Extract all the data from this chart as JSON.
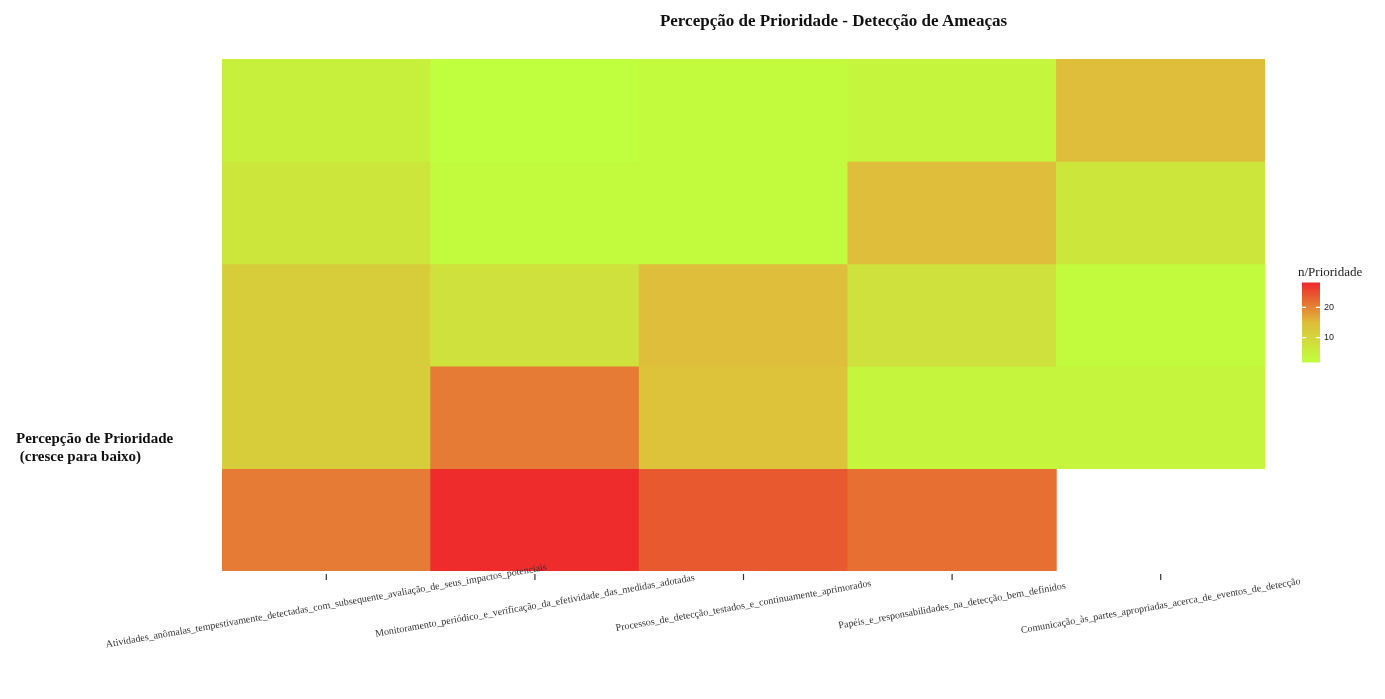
{
  "chart_data": {
    "type": "heatmap",
    "title": "Percepção de Prioridade - Detecção de Ameaças",
    "ylabel": "Percepção de Prioridade\n (cresce para baixo)",
    "clabel": "n/Prioridade",
    "categories": [
      "Atividades_anômalas_tempestivamente_detectadas_com_subsequente_avaliação_de_seus_impactos_potenciais",
      "Monitoramento_periódico_e_verificação_da_efetividade_das_medidas_adotadas",
      "Processos_de_detecção_testados_e_continuamente_aprimorados",
      "Papéis_e_responsabilidades_na_detecção_bem_definidos",
      "Comunicação_às_partes_apropriadas_acerca_de_eventos_de_detecção"
    ],
    "y_categories": [
      null,
      null,
      null,
      null,
      null
    ],
    "cells": [
      [
        5,
        2,
        3,
        4,
        15
      ],
      [
        7,
        3,
        3,
        15,
        7
      ],
      [
        12,
        8,
        15,
        8,
        3
      ],
      [
        12,
        21,
        14,
        4,
        4
      ],
      [
        21,
        28,
        24,
        22,
        null
      ]
    ],
    "clim": [
      2,
      28
    ],
    "cticks": [
      10,
      20
    ]
  }
}
